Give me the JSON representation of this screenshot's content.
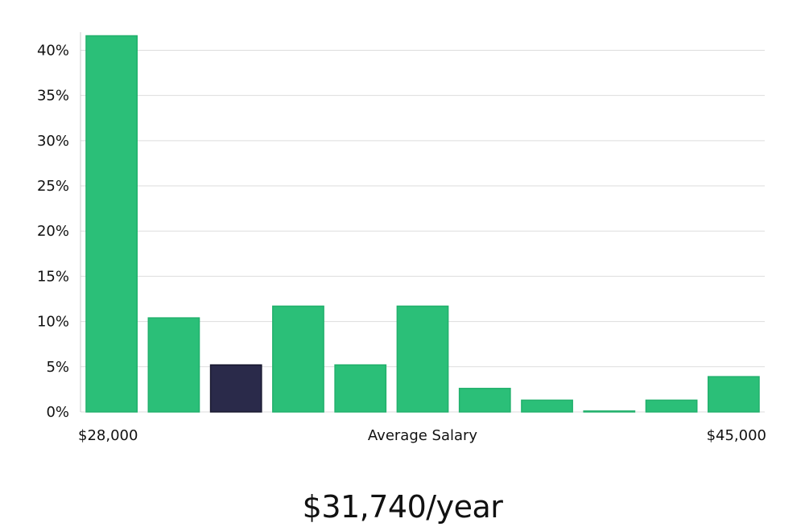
{
  "chart_data": {
    "type": "bar",
    "ylim": [
      0,
      42
    ],
    "yticks": [
      0,
      5,
      10,
      15,
      20,
      25,
      30,
      35,
      40
    ],
    "ytick_format": "{v}%",
    "values": [
      41.6,
      10.4,
      5.2,
      11.7,
      5.2,
      11.7,
      2.6,
      1.3,
      0.1,
      1.3,
      3.9
    ],
    "highlight_index": 2,
    "x_start_label": "$28,000",
    "x_end_label": "$45,000",
    "xlabel": "Average Salary",
    "grid": true,
    "colors": {
      "bar": "#2bbf78",
      "bar_edge": "#22b06c",
      "highlight": "#2a2a4a",
      "highlight_edge": "#1a1a30"
    }
  },
  "summary": {
    "salary_text": "$31,740/year"
  }
}
